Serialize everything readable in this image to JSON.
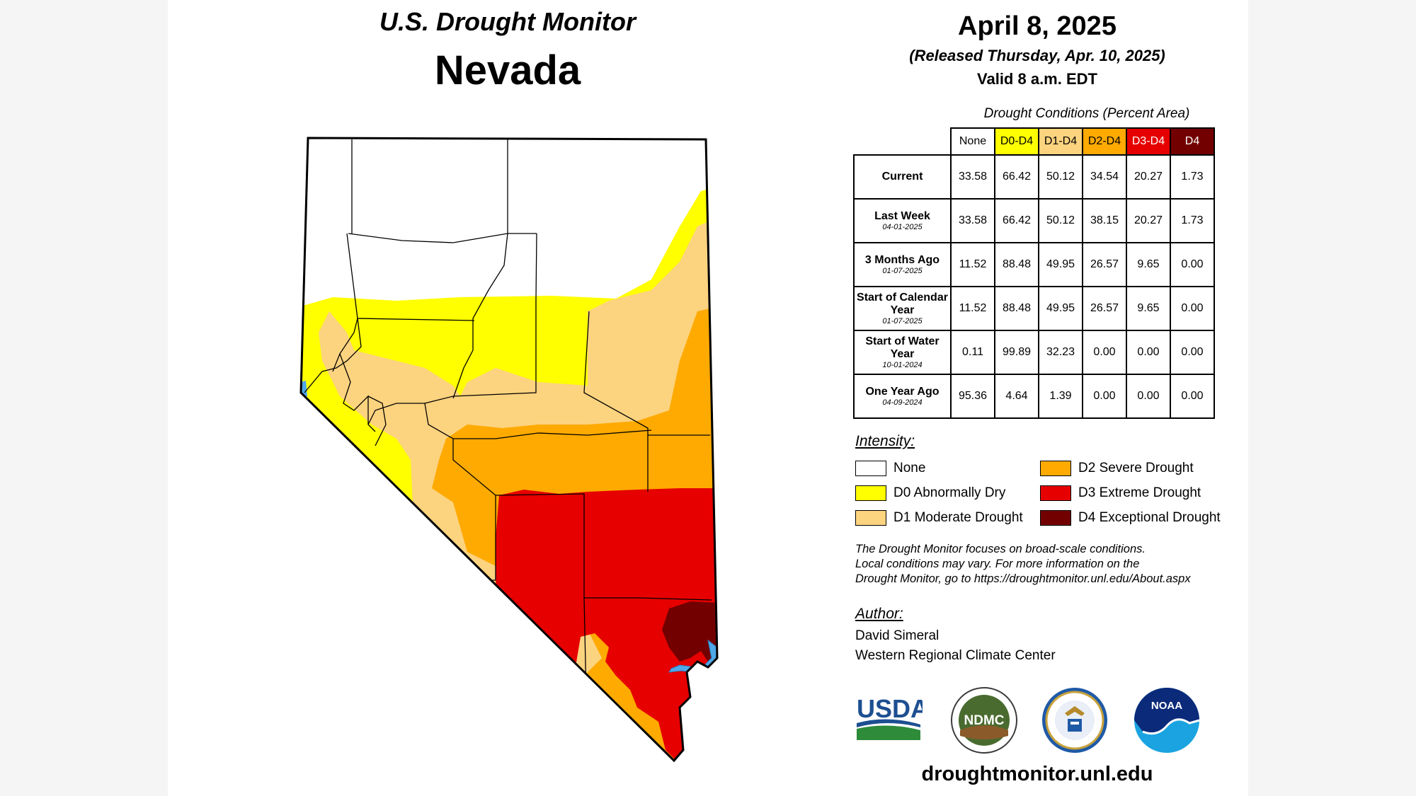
{
  "header": {
    "title": "U.S. Drought Monitor",
    "state": "Nevada",
    "date": "April 8, 2025",
    "released": "(Released Thursday, Apr. 10, 2025)",
    "valid": "Valid 8 a.m. EDT"
  },
  "table": {
    "caption": "Drought Conditions (Percent Area)",
    "columns": [
      "None",
      "D0-D4",
      "D1-D4",
      "D2-D4",
      "D3-D4",
      "D4"
    ],
    "rows": [
      {
        "label": "Current",
        "date": "",
        "values": [
          "33.58",
          "66.42",
          "50.12",
          "34.54",
          "20.27",
          "1.73"
        ]
      },
      {
        "label": "Last Week",
        "date": "04-01-2025",
        "values": [
          "33.58",
          "66.42",
          "50.12",
          "38.15",
          "20.27",
          "1.73"
        ]
      },
      {
        "label": "3 Months Ago",
        "date": "01-07-2025",
        "values": [
          "11.52",
          "88.48",
          "49.95",
          "26.57",
          "9.65",
          "0.00"
        ]
      },
      {
        "label": "Start of Calendar Year",
        "date": "01-07-2025",
        "values": [
          "11.52",
          "88.48",
          "49.95",
          "26.57",
          "9.65",
          "0.00"
        ]
      },
      {
        "label": "Start of Water Year",
        "date": "10-01-2024",
        "values": [
          "0.11",
          "99.89",
          "32.23",
          "0.00",
          "0.00",
          "0.00"
        ]
      },
      {
        "label": "One Year Ago",
        "date": "04-09-2024",
        "values": [
          "95.36",
          "4.64",
          "1.39",
          "0.00",
          "0.00",
          "0.00"
        ]
      }
    ]
  },
  "legend": {
    "title": "Intensity:",
    "items": [
      {
        "label": "None",
        "color": "#ffffff"
      },
      {
        "label": "D0 Abnormally Dry",
        "color": "#ffff00"
      },
      {
        "label": "D1 Moderate Drought",
        "color": "#fcd37f"
      },
      {
        "label": "D2 Severe Drought",
        "color": "#ffaa00"
      },
      {
        "label": "D3 Extreme Drought",
        "color": "#e60000"
      },
      {
        "label": "D4 Exceptional Drought",
        "color": "#730000"
      }
    ]
  },
  "note": {
    "line1": "The Drought Monitor focuses on broad-scale conditions.",
    "line2": "Local conditions may vary. For more information on the",
    "line3": "Drought Monitor, go to https://droughtmonitor.unl.edu/About.aspx"
  },
  "author": {
    "title": "Author:",
    "name": "David Simeral",
    "org": "Western Regional Climate Center"
  },
  "logos": {
    "usda": "USDA",
    "ndmc": "NDMC",
    "noaa": "NOAA",
    "commerce_icon": "department-of-commerce-seal-icon"
  },
  "footer": {
    "url": "droughtmonitor.unl.edu"
  }
}
